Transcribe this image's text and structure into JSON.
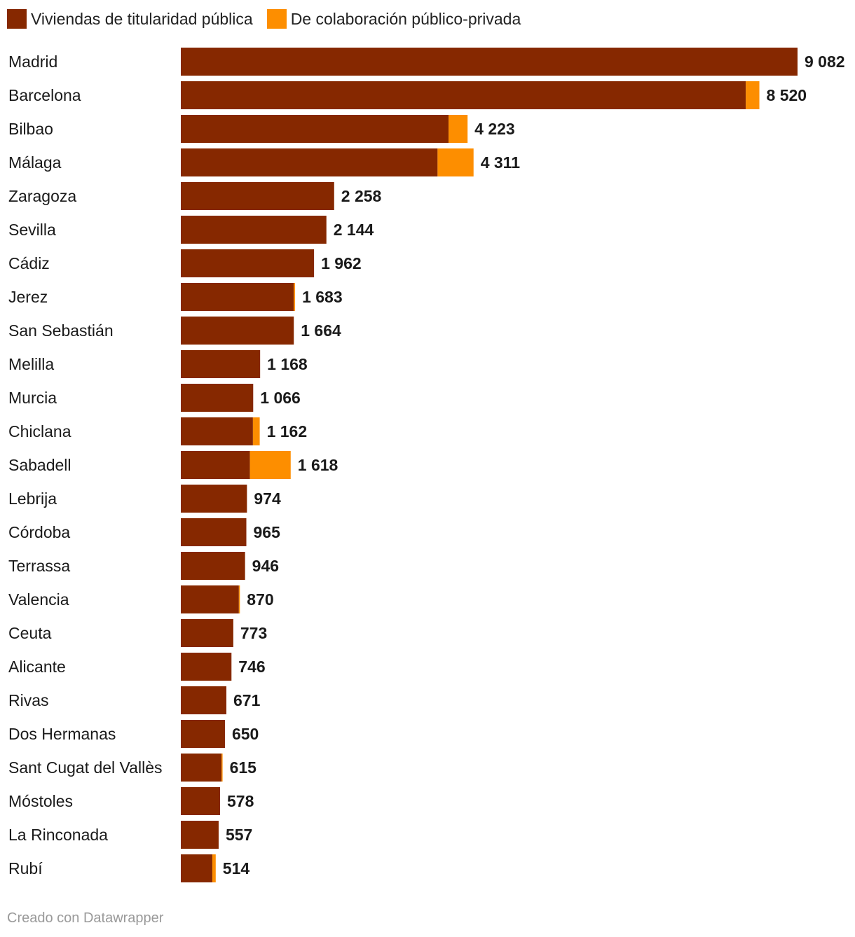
{
  "chart_data": {
    "type": "bar",
    "orientation": "horizontal",
    "stacked": true,
    "legend_position": "top-left",
    "colors": {
      "public": "#862800",
      "ppp": "#fd8e00"
    },
    "series": [
      {
        "name": "Viviendas de titularidad pública",
        "key": "public"
      },
      {
        "name": "De colaboración público-privada",
        "key": "ppp"
      }
    ],
    "rows": [
      {
        "label": "Madrid",
        "public": 9082,
        "ppp": 0,
        "total_label": "9 082"
      },
      {
        "label": "Barcelona",
        "public": 8320,
        "ppp": 200,
        "total_label": "8 520"
      },
      {
        "label": "Bilbao",
        "public": 3943,
        "ppp": 280,
        "total_label": "4 223"
      },
      {
        "label": "Málaga",
        "public": 3781,
        "ppp": 530,
        "total_label": "4 311"
      },
      {
        "label": "Zaragoza",
        "public": 2258,
        "ppp": 0,
        "total_label": "2 258"
      },
      {
        "label": "Sevilla",
        "public": 2144,
        "ppp": 0,
        "total_label": "2 144"
      },
      {
        "label": "Cádiz",
        "public": 1962,
        "ppp": 0,
        "total_label": "1 962"
      },
      {
        "label": "Jerez",
        "public": 1663,
        "ppp": 20,
        "total_label": "1 683"
      },
      {
        "label": "San Sebastián",
        "public": 1664,
        "ppp": 0,
        "total_label": "1 664"
      },
      {
        "label": "Melilla",
        "public": 1168,
        "ppp": 0,
        "total_label": "1 168"
      },
      {
        "label": "Murcia",
        "public": 1066,
        "ppp": 0,
        "total_label": "1 066"
      },
      {
        "label": "Chiclana",
        "public": 1062,
        "ppp": 100,
        "total_label": "1 162"
      },
      {
        "label": "Sabadell",
        "public": 1018,
        "ppp": 600,
        "total_label": "1 618"
      },
      {
        "label": "Lebrija",
        "public": 974,
        "ppp": 0,
        "total_label": "974"
      },
      {
        "label": "Córdoba",
        "public": 965,
        "ppp": 0,
        "total_label": "965"
      },
      {
        "label": "Terrassa",
        "public": 946,
        "ppp": 0,
        "total_label": "946"
      },
      {
        "label": "Valencia",
        "public": 855,
        "ppp": 15,
        "total_label": "870"
      },
      {
        "label": "Ceuta",
        "public": 773,
        "ppp": 0,
        "total_label": "773"
      },
      {
        "label": "Alicante",
        "public": 746,
        "ppp": 0,
        "total_label": "746"
      },
      {
        "label": "Rivas",
        "public": 671,
        "ppp": 0,
        "total_label": "671"
      },
      {
        "label": "Dos Hermanas",
        "public": 650,
        "ppp": 0,
        "total_label": "650"
      },
      {
        "label": "Sant Cugat del Vallès",
        "public": 600,
        "ppp": 15,
        "total_label": "615"
      },
      {
        "label": "Móstoles",
        "public": 578,
        "ppp": 0,
        "total_label": "578"
      },
      {
        "label": "La Rinconada",
        "public": 557,
        "ppp": 0,
        "total_label": "557"
      },
      {
        "label": "Rubí",
        "public": 464,
        "ppp": 50,
        "total_label": "514"
      }
    ]
  },
  "footer": {
    "credit": "Creado con Datawrapper"
  }
}
